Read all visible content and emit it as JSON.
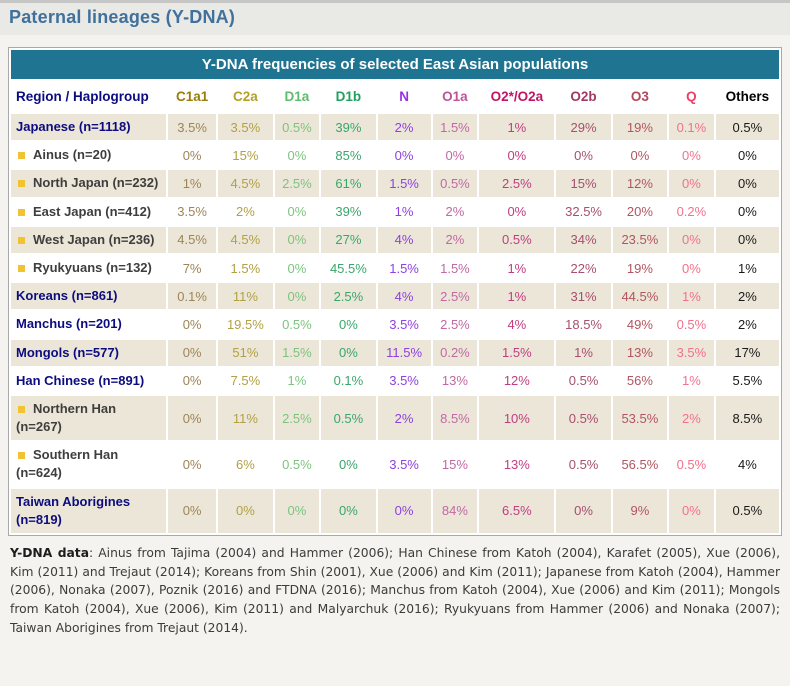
{
  "page": {
    "title": "Paternal lineages (Y-DNA)"
  },
  "colors": {
    "accent_teal": "#1e7491",
    "header_navy": "#0c0c80",
    "title_blue": "#40719c",
    "row_beige": "#ece6d8",
    "sub_label_gray": "#3e3e3e",
    "bullet_gold": "#f1c232",
    "page_bg": "#f4f3f0",
    "band_bg": "#e9e9e6",
    "border_gray": "#a9a9a9",
    "top_rule": "#c6c6c6",
    "footnote_gray": "#3c3c3c"
  },
  "table": {
    "caption": "Y-DNA frequencies of selected East Asian populations",
    "region_header": "Region / Haplogroup",
    "columns": [
      {
        "label": "C1a1",
        "color": "#9a7d0a",
        "value_color": "#9d8557"
      },
      {
        "label": "C2a",
        "color": "#b5a028",
        "value_color": "#b2a045"
      },
      {
        "label": "D1a",
        "color": "#5cbd6e",
        "value_color": "#7dc37f"
      },
      {
        "label": "D1b",
        "color": "#21a061",
        "value_color": "#3aa66b"
      },
      {
        "label": "N",
        "color": "#9a30e0",
        "value_color": "#8d41e0"
      },
      {
        "label": "O1a",
        "color": "#bf549c",
        "value_color": "#c268a4"
      },
      {
        "label": "O2*/O2a",
        "color": "#c21367",
        "value_color": "#c03d80"
      },
      {
        "label": "O2b",
        "color": "#a03a62",
        "value_color": "#a64f6e"
      },
      {
        "label": "O3",
        "color": "#b14758",
        "value_color": "#b25560"
      },
      {
        "label": "Q",
        "color": "#ee3e68",
        "value_color": "#f2718c"
      },
      {
        "label": "Others",
        "color": "#000000",
        "value_color": "#1a1a1a"
      }
    ],
    "rows": [
      {
        "label": "Japanese (n=1118)",
        "type": "main",
        "values": [
          "3.5%",
          "3.5%",
          "0.5%",
          "39%",
          "2%",
          "1.5%",
          "1%",
          "29%",
          "19%",
          "0.1%",
          "0.5%"
        ]
      },
      {
        "label": "Ainus (n=20)",
        "type": "sub",
        "values": [
          "0%",
          "15%",
          "0%",
          "85%",
          "0%",
          "0%",
          "0%",
          "0%",
          "0%",
          "0%",
          "0%"
        ]
      },
      {
        "label": "North Japan (n=232)",
        "type": "sub",
        "values": [
          "1%",
          "4.5%",
          "2.5%",
          "61%",
          "1.5%",
          "0.5%",
          "2.5%",
          "15%",
          "12%",
          "0%",
          "0%"
        ]
      },
      {
        "label": "East Japan (n=412)",
        "type": "sub",
        "values": [
          "3.5%",
          "2%",
          "0%",
          "39%",
          "1%",
          "2%",
          "0%",
          "32.5%",
          "20%",
          "0.2%",
          "0%"
        ]
      },
      {
        "label": "West Japan (n=236)",
        "type": "sub",
        "values": [
          "4.5%",
          "4.5%",
          "0%",
          "27%",
          "4%",
          "2%",
          "0.5%",
          "34%",
          "23.5%",
          "0%",
          "0%"
        ]
      },
      {
        "label": "Ryukyuans (n=132)",
        "type": "sub",
        "values": [
          "7%",
          "1.5%",
          "0%",
          "45.5%",
          "1.5%",
          "1.5%",
          "1%",
          "22%",
          "19%",
          "0%",
          "1%"
        ]
      },
      {
        "label": "Koreans (n=861)",
        "type": "main",
        "values": [
          "0.1%",
          "11%",
          "0%",
          "2.5%",
          "4%",
          "2.5%",
          "1%",
          "31%",
          "44.5%",
          "1%",
          "2%"
        ]
      },
      {
        "label": "Manchus (n=201)",
        "type": "main",
        "values": [
          "0%",
          "19.5%",
          "0.5%",
          "0%",
          "3.5%",
          "2.5%",
          "4%",
          "18.5%",
          "49%",
          "0.5%",
          "2%"
        ]
      },
      {
        "label": "Mongols (n=577)",
        "type": "main",
        "values": [
          "0%",
          "51%",
          "1.5%",
          "0%",
          "11.5%",
          "0.2%",
          "1.5%",
          "1%",
          "13%",
          "3.5%",
          "17%"
        ]
      },
      {
        "label": "Han Chinese (n=891)",
        "type": "main",
        "values": [
          "0%",
          "7.5%",
          "1%",
          "0.1%",
          "3.5%",
          "13%",
          "12%",
          "0.5%",
          "56%",
          "1%",
          "5.5%"
        ]
      },
      {
        "label": "Northern Han (n=267)",
        "type": "sub",
        "values": [
          "0%",
          "11%",
          "2.5%",
          "0.5%",
          "2%",
          "8.5%",
          "10%",
          "0.5%",
          "53.5%",
          "2%",
          "8.5%"
        ]
      },
      {
        "label": "Southern Han (n=624)",
        "type": "sub",
        "values": [
          "0%",
          "6%",
          "0.5%",
          "0%",
          "3.5%",
          "15%",
          "13%",
          "0.5%",
          "56.5%",
          "0.5%",
          "4%"
        ]
      },
      {
        "label": "Taiwan Aborigines (n=819)",
        "type": "main",
        "values": [
          "0%",
          "0%",
          "0%",
          "0%",
          "0%",
          "84%",
          "6.5%",
          "0%",
          "9%",
          "0%",
          "0.5%"
        ]
      }
    ]
  },
  "footnote": {
    "label": "Y-DNA data",
    "text": ": Ainus from Tajima (2004) and Hammer (2006); Han Chinese from Katoh (2004), Karafet (2005), Xue (2006), Kim (2011) and Trejaut (2014); Koreans from Shin (2001), Xue (2006) and Kim (2011); Japanese from Katoh (2004), Hammer (2006), Nonaka (2007), Poznik (2016) and FTDNA (2016); Manchus from Katoh (2004), Xue (2006) and Kim (2011); Mongols from Katoh (2004), Xue (2006), Kim (2011) and Malyarchuk (2016); Ryukyuans from Hammer (2006) and Nonaka (2007); Taiwan Aborigines from Trejaut (2014)."
  }
}
